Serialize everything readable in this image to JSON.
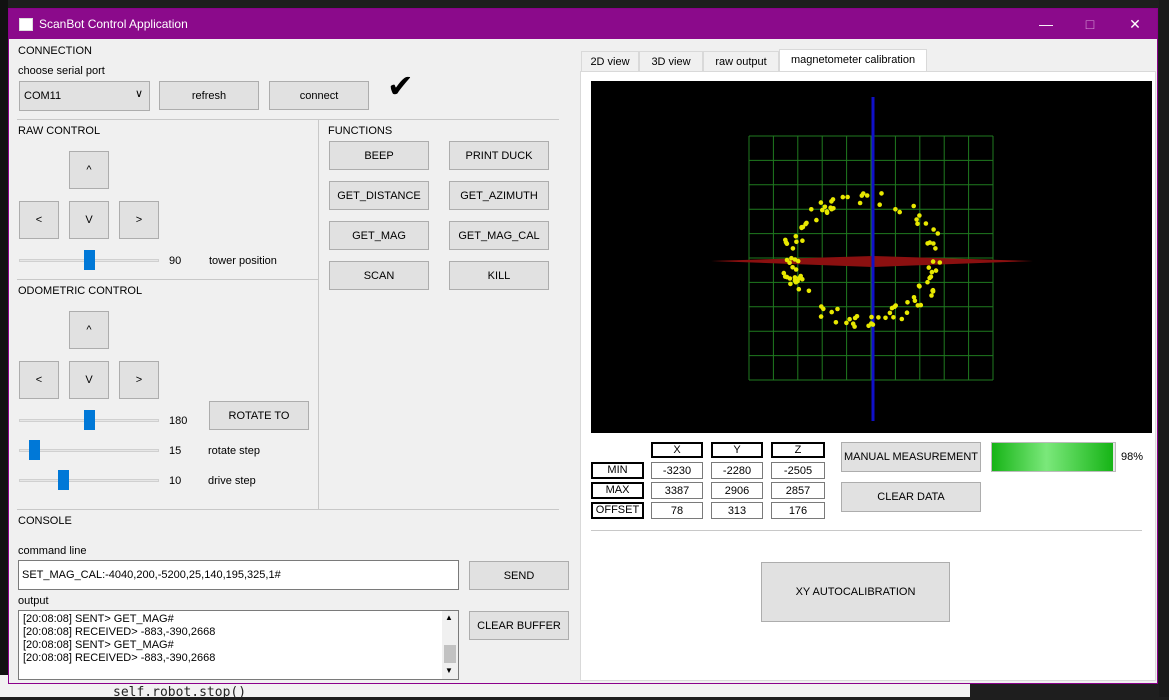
{
  "window": {
    "title": "ScanBot Control Application"
  },
  "background": {
    "code_line": "self.robot.stop()"
  },
  "connection": {
    "section_label": "CONNECTION",
    "port_label": "choose serial port",
    "port_value": "COM11",
    "refresh_label": "refresh",
    "connect_label": "connect",
    "status_icon": "checkmark-icon",
    "status_glyph": "✔"
  },
  "raw_control": {
    "section_label": "RAW CONTROL",
    "up": "^",
    "down": "V",
    "left": "<",
    "right": ">",
    "tower_value": "90",
    "tower_fraction": 0.5,
    "tower_label": "tower position"
  },
  "functions": {
    "section_label": "FUNCTIONS",
    "buttons": [
      "BEEP",
      "PRINT DUCK",
      "GET_DISTANCE",
      "GET_AZIMUTH",
      "GET_MAG",
      "GET_MAG_CAL",
      "SCAN",
      "KILL"
    ]
  },
  "odometric_control": {
    "section_label": "ODOMETRIC CONTROL",
    "up": "^",
    "down": "V",
    "left": "<",
    "right": ">",
    "rotate_to_label": "ROTATE TO",
    "angle_value": "180",
    "angle_fraction": 0.5,
    "rotate_step_value": "15",
    "rotate_step_fraction": 0.08,
    "rotate_step_label": "rotate step",
    "drive_step_value": "10",
    "drive_step_fraction": 0.3,
    "drive_step_label": "drive step"
  },
  "console": {
    "section_label": "CONSOLE",
    "command_label": "command line",
    "command_value": "SET_MAG_CAL:-4040,200,-5200,25,140,195,325,1#",
    "send_label": "SEND",
    "output_label": "output",
    "clear_buffer_label": "CLEAR BUFFER",
    "output_lines": [
      "[20:08:08] SENT> GET_MAG#",
      "[20:08:08] RECEIVED> -883,-390,2668",
      "[20:08:08] SENT> GET_MAG#",
      "[20:08:08] RECEIVED> -883,-390,2668"
    ]
  },
  "tabs": [
    "2D view",
    "3D view",
    "raw output",
    "magnetometer calibration"
  ],
  "active_tab": 3,
  "calibration": {
    "headers": [
      "X",
      "Y",
      "Z"
    ],
    "rows": [
      {
        "label": "MIN",
        "values": [
          "-3230",
          "-2280",
          "-2505"
        ]
      },
      {
        "label": "MAX",
        "values": [
          "3387",
          "2906",
          "2857"
        ]
      },
      {
        "label": "OFFSET",
        "values": [
          "78",
          "313",
          "176"
        ]
      }
    ],
    "manual_label": "MANUAL MEASUREMENT",
    "clear_label": "CLEAR DATA",
    "progress_value": 98,
    "progress_text": "98%",
    "autocal_label": "XY AUTOCALIBRATION",
    "colors": {
      "grid": "#1f7a1f",
      "points": "#e8e800",
      "x_axis": "#8b1010",
      "y_axis": "#1010c8",
      "progress": "#16b416"
    }
  }
}
